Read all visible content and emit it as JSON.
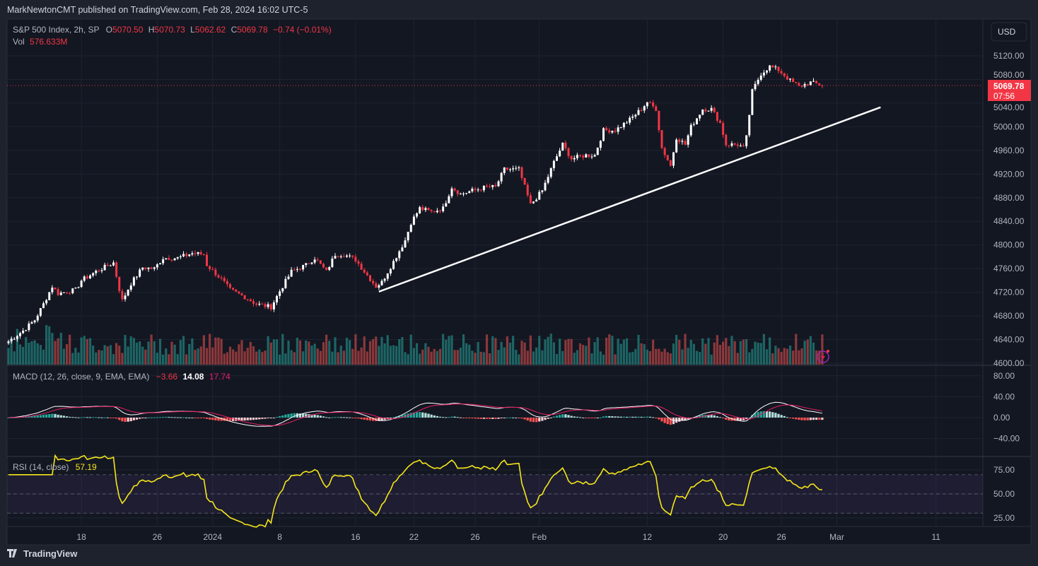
{
  "header": {
    "publisher": "MarkNewtonCMT published on TradingView.com, Feb 28, 2024 16:02 UTC-5"
  },
  "legend": {
    "symbol": "S&P 500 Index, 2h, SP",
    "o_label": "O",
    "o": "5070.50",
    "h_label": "H",
    "h": "5070.73",
    "l_label": "L",
    "l": "5062.62",
    "c_label": "C",
    "c": "5069.78",
    "change": "−0.74 (−0.01%)",
    "vol_label": "Vol",
    "vol": "576.633M"
  },
  "currency": "USD",
  "last_price": {
    "value": "5069.78",
    "countdown": "07:56"
  },
  "macd": {
    "label": "MACD (12, 26, close, 9, EMA, EMA)",
    "hist": "−3.66",
    "macd": "14.08",
    "signal": "17.74",
    "ticks": [
      {
        "v": 80,
        "label": "80.00"
      },
      {
        "v": 40,
        "label": "40.00"
      },
      {
        "v": 0,
        "label": "0.00"
      },
      {
        "v": -40,
        "label": "−40.00"
      }
    ]
  },
  "rsi": {
    "label": "RSI (14, close)",
    "value": "57.19",
    "ticks": [
      {
        "v": 75,
        "label": "75.00"
      },
      {
        "v": 50,
        "label": "50.00"
      },
      {
        "v": 25,
        "label": "25.00"
      }
    ]
  },
  "footer": {
    "brand": "TradingView"
  },
  "colors": {
    "bg": "#131722",
    "up": "#ffffff",
    "down": "#f23645",
    "vol_up": "#26a69a",
    "vol_down": "#ef5350",
    "macd": "#ffffff",
    "signal": "#e91e63",
    "rsi": "#f5e61b",
    "trendline": "#ffffff"
  },
  "chart_data": {
    "type": "candlestick",
    "title": "S&P 500 Index, 2h",
    "ylim": [
      4600,
      5120
    ],
    "price_ticks": [
      {
        "v": 5120,
        "label": "5120.00"
      },
      {
        "v": 5080,
        "label": "5080.00"
      },
      {
        "v": 5040,
        "label": "5040.00"
      },
      {
        "v": 5000,
        "label": "5000.00"
      },
      {
        "v": 4960,
        "label": "4960.00"
      },
      {
        "v": 4920,
        "label": "4920.00"
      },
      {
        "v": 4880,
        "label": "4880.00"
      },
      {
        "v": 4840,
        "label": "4840.00"
      },
      {
        "v": 4800,
        "label": "4800.00"
      },
      {
        "v": 4760,
        "label": "4760.00"
      },
      {
        "v": 4720,
        "label": "4720.00"
      },
      {
        "v": 4680,
        "label": "4680.00"
      },
      {
        "v": 4640,
        "label": "4640.00"
      },
      {
        "v": 4600,
        "label": "4600.00"
      }
    ],
    "time_ticks": [
      {
        "bar": 25,
        "label": "18"
      },
      {
        "bar": 51,
        "label": "26"
      },
      {
        "bar": 70,
        "label": "2024"
      },
      {
        "bar": 93,
        "label": "8"
      },
      {
        "bar": 119,
        "label": "16"
      },
      {
        "bar": 139,
        "label": "22"
      },
      {
        "bar": 160,
        "label": "26"
      },
      {
        "bar": 182,
        "label": "Feb"
      },
      {
        "bar": 219,
        "label": "12"
      },
      {
        "bar": 245,
        "label": "20"
      },
      {
        "bar": 265,
        "label": "26"
      },
      {
        "bar": 284,
        "label": "Mar"
      },
      {
        "bar": 318,
        "label": "11"
      }
    ],
    "bars_total": 280,
    "closes": [
      [
        0,
        4637
      ],
      [
        5,
        4655
      ],
      [
        9,
        4673
      ],
      [
        12,
        4700
      ],
      [
        15,
        4730
      ],
      [
        17,
        4718
      ],
      [
        23,
        4724
      ],
      [
        25,
        4740
      ],
      [
        30,
        4755
      ],
      [
        36,
        4770
      ],
      [
        38,
        4725
      ],
      [
        39,
        4706
      ],
      [
        42,
        4735
      ],
      [
        46,
        4762
      ],
      [
        50,
        4760
      ],
      [
        53,
        4778
      ],
      [
        58,
        4778
      ],
      [
        63,
        4786
      ],
      [
        67,
        4784
      ],
      [
        68,
        4766
      ],
      [
        73,
        4742
      ],
      [
        76,
        4724
      ],
      [
        81,
        4712
      ],
      [
        85,
        4700
      ],
      [
        90,
        4695
      ],
      [
        93,
        4722
      ],
      [
        97,
        4755
      ],
      [
        102,
        4766
      ],
      [
        105,
        4778
      ],
      [
        109,
        4755
      ],
      [
        112,
        4784
      ],
      [
        115,
        4784
      ],
      [
        119,
        4775
      ],
      [
        122,
        4755
      ],
      [
        126,
        4730
      ],
      [
        128,
        4737
      ],
      [
        132,
        4772
      ],
      [
        136,
        4808
      ],
      [
        138,
        4838
      ],
      [
        141,
        4862
      ],
      [
        145,
        4856
      ],
      [
        149,
        4862
      ],
      [
        152,
        4898
      ],
      [
        155,
        4886
      ],
      [
        159,
        4892
      ],
      [
        164,
        4898
      ],
      [
        167,
        4898
      ],
      [
        170,
        4928
      ],
      [
        175,
        4928
      ],
      [
        177,
        4898
      ],
      [
        179,
        4868
      ],
      [
        183,
        4892
      ],
      [
        187,
        4940
      ],
      [
        190,
        4970
      ],
      [
        193,
        4946
      ],
      [
        198,
        4952
      ],
      [
        201,
        4952
      ],
      [
        204,
        4994
      ],
      [
        208,
        4994
      ],
      [
        213,
        5012
      ],
      [
        217,
        5030
      ],
      [
        219,
        5042
      ],
      [
        222,
        5030
      ],
      [
        224,
        4964
      ],
      [
        227,
        4934
      ],
      [
        229,
        4982
      ],
      [
        232,
        4970
      ],
      [
        234,
        5000
      ],
      [
        238,
        5030
      ],
      [
        241,
        5030
      ],
      [
        244,
        5006
      ],
      [
        246,
        4970
      ],
      [
        250,
        4970
      ],
      [
        252,
        4964
      ],
      [
        253,
        4982
      ],
      [
        255,
        5060
      ],
      [
        258,
        5090
      ],
      [
        261,
        5102
      ],
      [
        264,
        5096
      ],
      [
        268,
        5078
      ],
      [
        271,
        5068
      ],
      [
        275,
        5075
      ],
      [
        279,
        5070
      ]
    ],
    "trendline": {
      "start": [
        127,
        4721
      ],
      "end": [
        299,
        5033
      ]
    },
    "last_close": 5069.78
  }
}
